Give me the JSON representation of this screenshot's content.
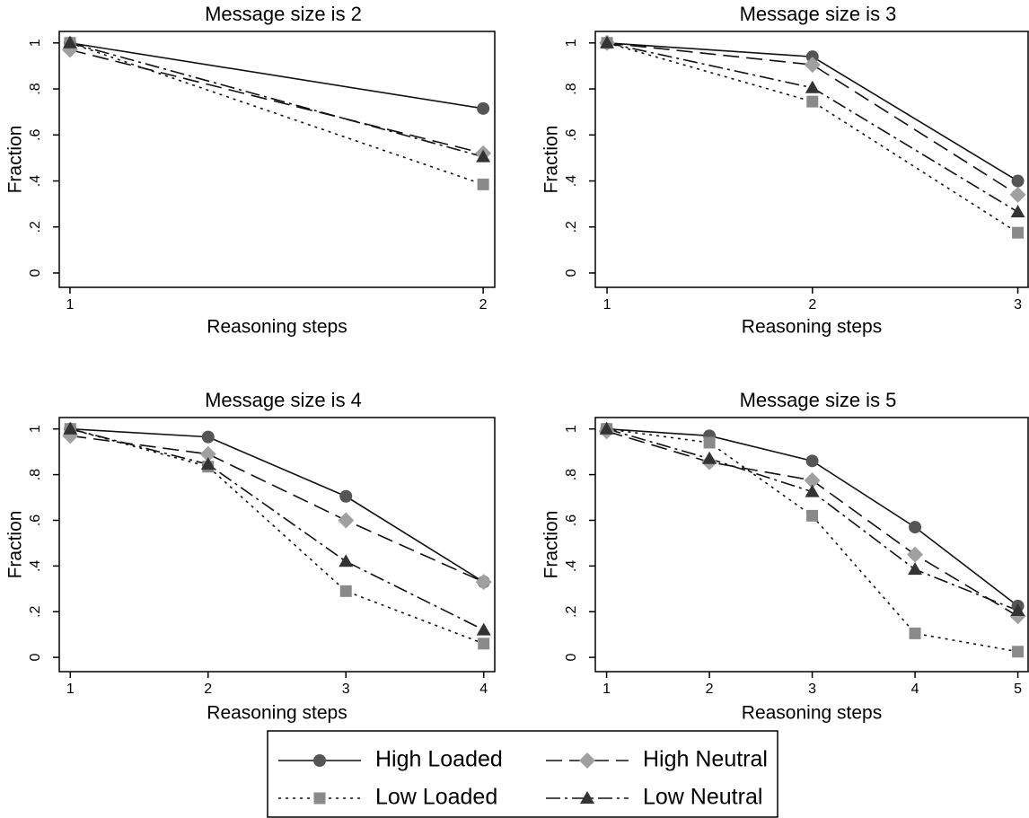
{
  "chart_data": [
    {
      "type": "line",
      "title": "Message size is 2",
      "xlabel": "Reasoning steps",
      "ylabel": "Fraction",
      "x": [
        1,
        2
      ],
      "xlim": [
        0.974,
        2.028
      ],
      "xticks": [
        1,
        2
      ],
      "ylim": [
        -0.0625,
        1.05
      ],
      "yticks": [
        0,
        {
          "value": 0.2,
          "label": ".2"
        },
        {
          "value": 0.4,
          "label": ".4"
        },
        {
          "value": 0.6,
          "label": ".6"
        },
        {
          "value": 0.8,
          "label": ".8"
        },
        1
      ],
      "series": [
        {
          "name": "High Loaded",
          "color": "#555555",
          "marker": "circle",
          "dash": "solid",
          "values": [
            1,
            0.715
          ]
        },
        {
          "name": "High Neutral",
          "color": "#a0a0a0",
          "marker": "diamond",
          "dash": "long-dash",
          "values": [
            0.97,
            0.52
          ]
        },
        {
          "name": "Low Loaded",
          "color": "#8a8a8a",
          "marker": "square",
          "dash": "dot",
          "values": [
            1,
            0.385
          ]
        },
        {
          "name": "Low Neutral",
          "color": "#333333",
          "marker": "triangle",
          "dash": "dash-dot",
          "values": [
            1,
            0.505
          ]
        }
      ]
    },
    {
      "type": "line",
      "title": "Message size is 3",
      "xlabel": "Reasoning steps",
      "ylabel": "Fraction",
      "x": [
        1,
        2,
        3
      ],
      "xlim": [
        0.943,
        3.05
      ],
      "xticks": [
        1,
        2,
        3
      ],
      "ylim": [
        -0.0625,
        1.05
      ],
      "yticks": [
        0,
        {
          "value": 0.2,
          "label": ".2"
        },
        {
          "value": 0.4,
          "label": ".4"
        },
        {
          "value": 0.6,
          "label": ".6"
        },
        {
          "value": 0.8,
          "label": ".8"
        },
        1
      ],
      "series": [
        {
          "name": "High Loaded",
          "color": "#555555",
          "marker": "circle",
          "dash": "solid",
          "values": [
            1,
            0.94,
            0.4
          ]
        },
        {
          "name": "High Neutral",
          "color": "#a0a0a0",
          "marker": "diamond",
          "dash": "long-dash",
          "values": [
            1,
            0.905,
            0.34
          ]
        },
        {
          "name": "Low Loaded",
          "color": "#8a8a8a",
          "marker": "square",
          "dash": "dot",
          "values": [
            1,
            0.745,
            0.175
          ]
        },
        {
          "name": "Low Neutral",
          "color": "#333333",
          "marker": "triangle",
          "dash": "dash-dot",
          "values": [
            1,
            0.805,
            0.265
          ]
        }
      ]
    },
    {
      "type": "line",
      "title": "Message size is 4",
      "xlabel": "Reasoning steps",
      "ylabel": "Fraction",
      "x": [
        1,
        2,
        3,
        4
      ],
      "xlim": [
        0.92,
        4.08
      ],
      "xticks": [
        1,
        2,
        3,
        4
      ],
      "ylim": [
        -0.0625,
        1.05
      ],
      "yticks": [
        0,
        {
          "value": 0.2,
          "label": ".2"
        },
        {
          "value": 0.4,
          "label": ".4"
        },
        {
          "value": 0.6,
          "label": ".6"
        },
        {
          "value": 0.8,
          "label": ".8"
        },
        1
      ],
      "series": [
        {
          "name": "High Loaded",
          "color": "#555555",
          "marker": "circle",
          "dash": "solid",
          "values": [
            1,
            0.965,
            0.705,
            0.33
          ]
        },
        {
          "name": "High Neutral",
          "color": "#a0a0a0",
          "marker": "diamond",
          "dash": "long-dash",
          "values": [
            0.97,
            0.89,
            0.6,
            0.33
          ]
        },
        {
          "name": "Low Loaded",
          "color": "#8a8a8a",
          "marker": "square",
          "dash": "dot",
          "values": [
            1,
            0.835,
            0.29,
            0.06
          ]
        },
        {
          "name": "Low Neutral",
          "color": "#333333",
          "marker": "triangle",
          "dash": "dash-dot",
          "values": [
            1,
            0.845,
            0.42,
            0.12
          ]
        }
      ]
    },
    {
      "type": "line",
      "title": "Message size is 5",
      "xlabel": "Reasoning steps",
      "ylabel": "Fraction",
      "x": [
        1,
        2,
        3,
        4,
        5
      ],
      "xlim": [
        0.89,
        5.1
      ],
      "xticks": [
        1,
        2,
        3,
        4,
        5
      ],
      "ylim": [
        -0.0625,
        1.05
      ],
      "yticks": [
        0,
        {
          "value": 0.2,
          "label": ".2"
        },
        {
          "value": 0.4,
          "label": ".4"
        },
        {
          "value": 0.6,
          "label": ".6"
        },
        {
          "value": 0.8,
          "label": ".8"
        },
        1
      ],
      "series": [
        {
          "name": "High Loaded",
          "color": "#555555",
          "marker": "circle",
          "dash": "solid",
          "values": [
            1,
            0.97,
            0.86,
            0.57,
            0.225
          ]
        },
        {
          "name": "High Neutral",
          "color": "#a0a0a0",
          "marker": "diamond",
          "dash": "long-dash",
          "values": [
            0.99,
            0.855,
            0.775,
            0.45,
            0.18
          ]
        },
        {
          "name": "Low Loaded",
          "color": "#8a8a8a",
          "marker": "square",
          "dash": "dot",
          "values": [
            1,
            0.94,
            0.62,
            0.105,
            0.025
          ]
        },
        {
          "name": "Low Neutral",
          "color": "#333333",
          "marker": "triangle",
          "dash": "dash-dot",
          "values": [
            1,
            0.87,
            0.725,
            0.385,
            0.205
          ]
        }
      ]
    }
  ]
}
